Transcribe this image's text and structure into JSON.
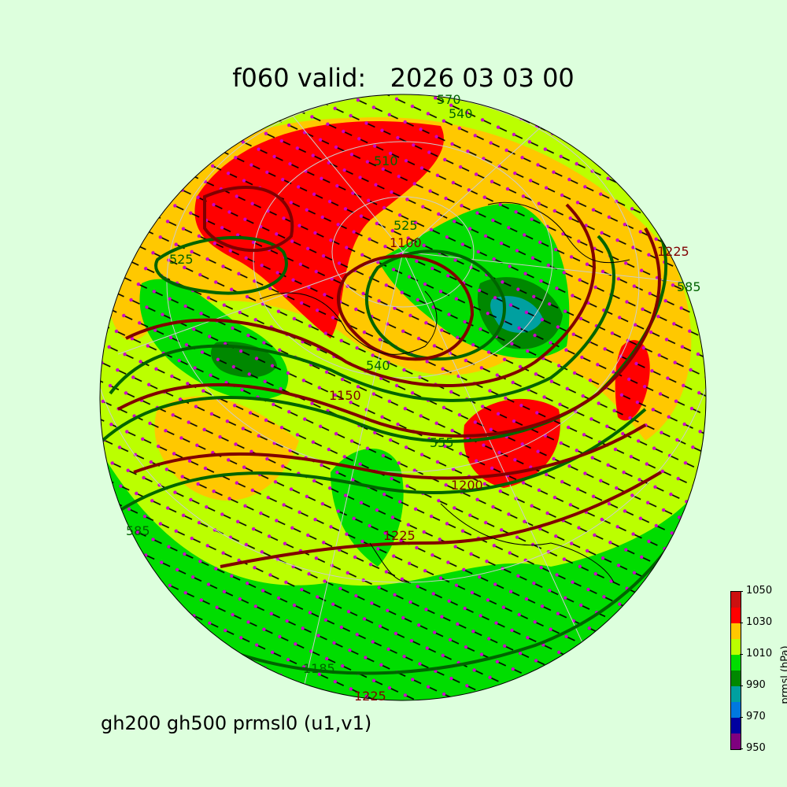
{
  "title": "f060 valid:   2026 03 03 00",
  "subtitle": "gh200 gh500 prmsl0 (u1,v1)",
  "colorbar": {
    "label": "prmsl (hPa)",
    "ticks": [
      "950",
      "970",
      "990",
      "1010",
      "1030",
      "1050"
    ],
    "levels": [
      950,
      960,
      970,
      980,
      990,
      1000,
      1010,
      1020,
      1030,
      1040,
      1050
    ],
    "colors": [
      "#7f007f",
      "#0000a0",
      "#0078e0",
      "#00a0a0",
      "#008800",
      "#00dd00",
      "#bbff00",
      "#ffc800",
      "#ff0000",
      "#cc1010"
    ]
  },
  "contour_colors": {
    "gh500": "#006400",
    "gh200": "#800000"
  },
  "contour_labels": {
    "gh500": [
      "570",
      "540",
      "510",
      "525",
      "555",
      "585",
      "540",
      "585",
      "525"
    ],
    "gh200": [
      "1100",
      "1150",
      "1200",
      "1225",
      "1225",
      "1225",
      "1185"
    ]
  },
  "barb_colors": {
    "shaft": "#000000",
    "dot": "#cc00cc"
  }
}
